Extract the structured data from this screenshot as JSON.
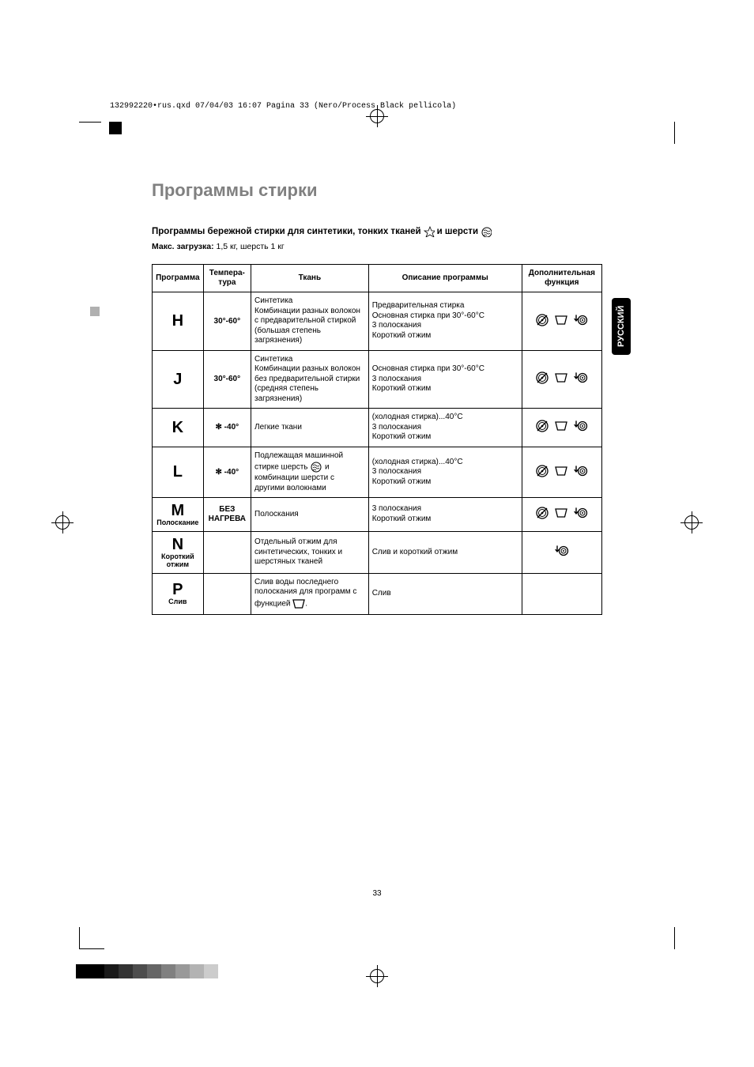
{
  "header_line": "132992220•rus.qxd  07/04/03  16:07  Pagina 33   (Nero/Process Black pellicola)",
  "page_title": "Программы стирки",
  "subtitle_part1": "Программы бережной стирки для синтетики, тонких тканей",
  "subtitle_part2": "и шерсти",
  "load_label": "Макс. загрузка:",
  "load_value": "1,5 кг, шерсть 1 кг",
  "side_tab": "РУССКИЙ",
  "page_number": "33",
  "columns": {
    "program": "Программа",
    "temp": "Темпера-\nтура",
    "fabric": "Ткань",
    "desc": "Описание\nпрограммы",
    "func": "Дополнительная\nфункция"
  },
  "rows": [
    {
      "letter": "H",
      "sub": "",
      "temp": "30°-60°",
      "fabric": "Синтетика\nКомбинации разных волокон с предварительной стиркой (большая степень загрязнения)",
      "desc": "Предварительная стирка\nОсновная стирка при 30°-60°C\n3 полоскания\nКороткий отжим",
      "icons": [
        "nospin",
        "rinsehold",
        "spin-down"
      ]
    },
    {
      "letter": "J",
      "sub": "",
      "temp": "30°-60°",
      "fabric": "Синтетика\nКомбинации разных волокон без предварительной стирки (средняя степень загрязнения)",
      "desc": "Основная стирка при 30°-60°C\n3 полоскания\nКороткий отжим",
      "icons": [
        "nospin",
        "rinsehold",
        "spin-down"
      ]
    },
    {
      "letter": "K",
      "sub": "",
      "temp": "✻ -40°",
      "fabric": "Легкие ткани",
      "desc": "(холодная стирка)...40°C\n3 полоскания\nКороткий отжим",
      "icons": [
        "nospin",
        "rinsehold",
        "spin-down"
      ]
    },
    {
      "letter": "L",
      "sub": "",
      "temp": "✻ -40°",
      "fabric": "Подлежащая машинной стирке шерсть [wool] и комбинации шерсти с другими волокнами",
      "desc": "(холодная стирка)...40°C\n3 полоскания\nКороткий отжим",
      "icons": [
        "nospin",
        "rinsehold",
        "spin-down"
      ]
    },
    {
      "letter": "M",
      "sub": "Полоскание",
      "temp": "БЕЗ\nНАГРЕВА",
      "fabric": "Полоскания",
      "desc": "3 полоскания\nКороткий отжим",
      "icons": [
        "nospin",
        "rinsehold",
        "spin-down"
      ]
    },
    {
      "letter": "N",
      "sub": "Короткий\nотжим",
      "temp": "",
      "fabric": "Отдельный отжим для синтетических, тонких и шерстяных тканей",
      "desc": "Слив и короткий отжим",
      "icons": [
        "spin-down"
      ]
    },
    {
      "letter": "P",
      "sub": "Слив",
      "temp": "",
      "fabric": "Слив воды последнего полоскания для программ с функцией [rinsehold].",
      "desc": "Слив",
      "icons": []
    }
  ],
  "colors": {
    "title": "#808080",
    "border": "#000000",
    "background": "#ffffff",
    "tab_bg": "#000000",
    "tab_fg": "#ffffff"
  },
  "color_bar": [
    "#000000",
    "#000000",
    "#1a1a1a",
    "#333333",
    "#4d4d4d",
    "#666666",
    "#808080",
    "#999999",
    "#b3b3b3",
    "#cccccc"
  ]
}
